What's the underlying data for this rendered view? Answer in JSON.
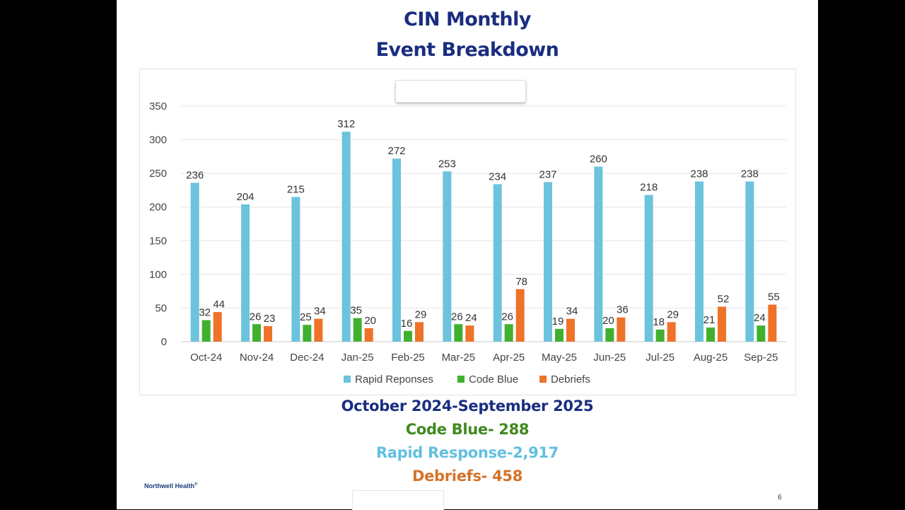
{
  "slide": {
    "title_line1": "CIN Monthly",
    "title_line2": "Event Breakdown",
    "summary_period": "October 2024-September 2025",
    "summary_code_blue": "Code Blue- 288",
    "summary_rapid_response": "Rapid Response-2,917",
    "summary_debriefs": "Debriefs- 458",
    "logo_text": "Northwell Health",
    "logo_mark": "®",
    "page_number": "6"
  },
  "colors": {
    "rapid": "#6cc3dc",
    "code_blue": "#41b02f",
    "debriefs": "#ee7228",
    "title": "#1a2d80"
  },
  "chart_data": {
    "type": "bar",
    "categories": [
      "Oct-24",
      "Nov-24",
      "Dec-24",
      "Jan-25",
      "Feb-25",
      "Mar-25",
      "Apr-25",
      "May-25",
      "Jun-25",
      "Jul-25",
      "Aug-25",
      "Sep-25"
    ],
    "series": [
      {
        "name": "Rapid Reponses",
        "color": "#6cc3dc",
        "values": [
          236,
          204,
          215,
          312,
          272,
          253,
          234,
          237,
          260,
          218,
          238,
          238
        ]
      },
      {
        "name": "Code Blue",
        "color": "#41b02f",
        "values": [
          32,
          26,
          25,
          35,
          16,
          26,
          26,
          19,
          20,
          18,
          21,
          24
        ]
      },
      {
        "name": "Debriefs",
        "color": "#ee7228",
        "values": [
          44,
          23,
          34,
          20,
          29,
          24,
          78,
          34,
          36,
          29,
          52,
          55
        ]
      }
    ],
    "yticks": [
      "0",
      "50",
      "100",
      "150",
      "200",
      "250",
      "300",
      "350"
    ],
    "ylim": [
      0,
      350
    ],
    "grid": true,
    "legend": "bottom",
    "data_labels": true
  }
}
